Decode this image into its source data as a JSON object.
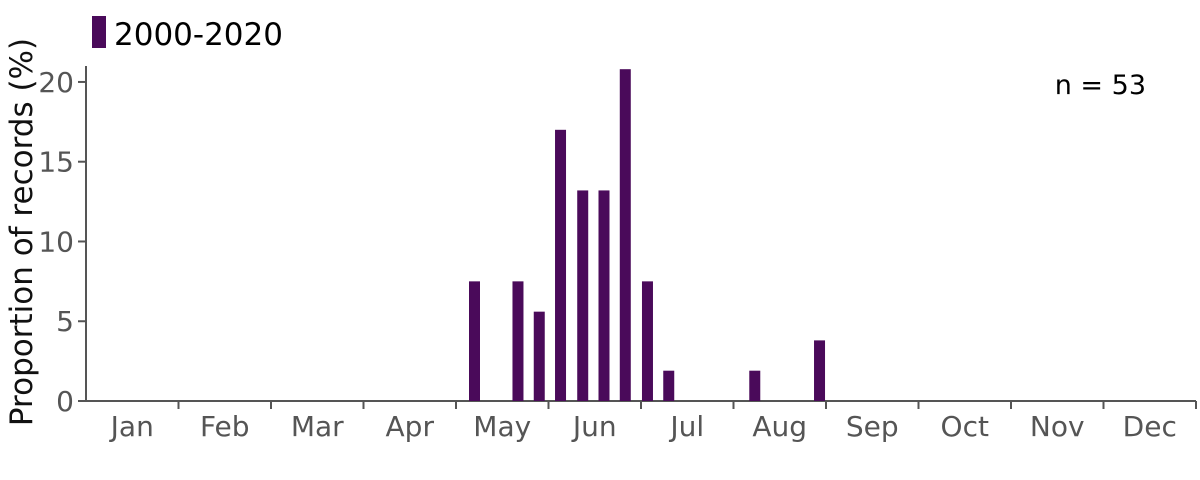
{
  "chart_data": {
    "type": "bar",
    "ylabel": "Proportion of records (%)",
    "xlabel": "",
    "ylim": [
      0,
      21
    ],
    "yticks": [
      0,
      5,
      10,
      15,
      20
    ],
    "month_labels": [
      "Jan",
      "Feb",
      "Mar",
      "Apr",
      "May",
      "Jun",
      "Jul",
      "Aug",
      "Sep",
      "Oct",
      "Nov",
      "Dec"
    ],
    "annotation": "n = 53",
    "series": [
      {
        "name": "2000-2020",
        "color": "#4a0a5a",
        "points": [
          {
            "month": 5.2,
            "value": 7.5
          },
          {
            "month": 5.67,
            "value": 7.5
          },
          {
            "month": 5.9,
            "value": 5.6
          },
          {
            "month": 6.13,
            "value": 17.0
          },
          {
            "month": 6.37,
            "value": 13.2
          },
          {
            "month": 6.6,
            "value": 13.2
          },
          {
            "month": 6.83,
            "value": 20.8
          },
          {
            "month": 7.07,
            "value": 7.5
          },
          {
            "month": 7.3,
            "value": 1.9
          },
          {
            "month": 8.23,
            "value": 1.9
          },
          {
            "month": 8.93,
            "value": 3.8
          }
        ]
      }
    ]
  }
}
